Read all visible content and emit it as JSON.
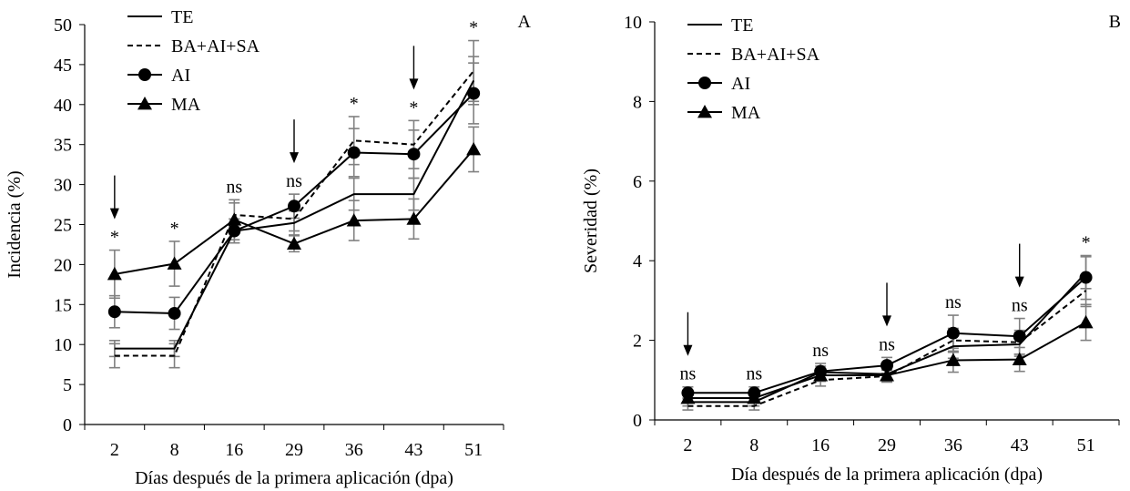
{
  "colors": {
    "line": "#000000",
    "error_bar": "#808080",
    "background": "#ffffff"
  },
  "chart_data": [
    {
      "panel_label": "A",
      "type": "line",
      "xlabel": "Días después de la primera aplicación (dpa)",
      "ylabel": "Incidencia (%)",
      "categories": [
        "2",
        "8",
        "16",
        "29",
        "36",
        "43",
        "51"
      ],
      "ylim": [
        0,
        50
      ],
      "yticks": [
        0,
        5,
        10,
        15,
        20,
        25,
        30,
        35,
        40,
        45,
        50
      ],
      "legend_position": "top-left",
      "series": [
        {
          "name": "TE",
          "marker": "none",
          "dash": "solid",
          "values": [
            9.5,
            9.5,
            24.2,
            25.2,
            28.8,
            28.8,
            43.0
          ],
          "errors": [
            1.0,
            1.0,
            1.5,
            1.5,
            2.0,
            2.0,
            3.0
          ]
        },
        {
          "name": "BA+AI+SA",
          "marker": "none",
          "dash": "dashed",
          "values": [
            8.6,
            8.6,
            26.2,
            25.7,
            35.5,
            35.0,
            44.2
          ],
          "errors": [
            1.5,
            1.5,
            1.5,
            1.5,
            3.0,
            3.0,
            3.8
          ]
        },
        {
          "name": "AI",
          "marker": "circle",
          "dash": "solid",
          "values": [
            14.1,
            13.9,
            24.2,
            27.3,
            34.0,
            33.8,
            41.4
          ],
          "errors": [
            2.0,
            2.0,
            1.5,
            1.5,
            3.0,
            3.0,
            3.8
          ]
        },
        {
          "name": "MA",
          "marker": "triangle",
          "dash": "solid",
          "values": [
            18.8,
            20.1,
            25.6,
            22.6,
            25.5,
            25.7,
            34.4
          ],
          "errors": [
            3.0,
            2.8,
            2.5,
            1.0,
            2.5,
            2.5,
            2.8
          ]
        }
      ],
      "significance": [
        "*",
        "*",
        "ns",
        "ns",
        "*",
        "*",
        "*"
      ],
      "application_arrows": [
        "2",
        "29",
        "43"
      ]
    },
    {
      "panel_label": "B",
      "type": "line",
      "xlabel": "Día después de la primera aplicación (dpa)",
      "ylabel": "Severidad (%)",
      "categories": [
        "2",
        "8",
        "16",
        "29",
        "36",
        "43",
        "51"
      ],
      "ylim": [
        0,
        10
      ],
      "yticks": [
        0,
        2,
        4,
        6,
        8,
        10
      ],
      "legend_position": "top-left",
      "series": [
        {
          "name": "TE",
          "marker": "none",
          "dash": "solid",
          "values": [
            0.45,
            0.45,
            1.2,
            1.15,
            1.85,
            1.9,
            3.7
          ],
          "errors": [
            0.1,
            0.1,
            0.15,
            0.15,
            0.3,
            0.3,
            0.4
          ]
        },
        {
          "name": "BA+AI+SA",
          "marker": "none",
          "dash": "dashed",
          "values": [
            0.35,
            0.35,
            1.0,
            1.1,
            2.0,
            1.95,
            3.25
          ],
          "errors": [
            0.1,
            0.1,
            0.15,
            0.15,
            0.3,
            0.3,
            0.4
          ]
        },
        {
          "name": "AI",
          "marker": "circle",
          "dash": "solid",
          "values": [
            0.68,
            0.68,
            1.22,
            1.37,
            2.18,
            2.1,
            3.58
          ],
          "errors": [
            0.15,
            0.15,
            0.2,
            0.2,
            0.45,
            0.45,
            0.55
          ]
        },
        {
          "name": "MA",
          "marker": "triangle",
          "dash": "solid",
          "values": [
            0.55,
            0.55,
            1.12,
            1.12,
            1.5,
            1.52,
            2.45
          ],
          "errors": [
            0.1,
            0.1,
            0.15,
            0.15,
            0.3,
            0.3,
            0.45
          ]
        }
      ],
      "significance": [
        "ns",
        "ns",
        "ns",
        "ns",
        "ns",
        "ns",
        "*"
      ],
      "application_arrows": [
        "2",
        "29",
        "43"
      ]
    }
  ]
}
